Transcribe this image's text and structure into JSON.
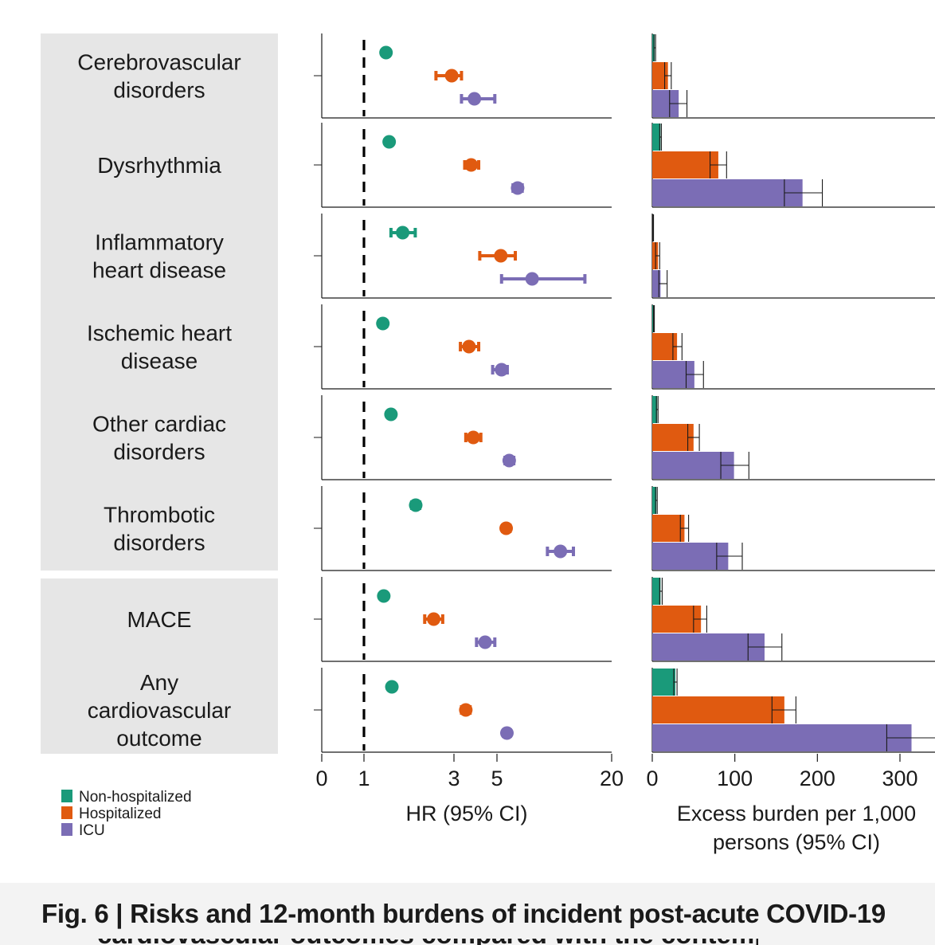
{
  "chart_data": [
    {
      "type": "forest",
      "xlabel": "HR (95% CI)",
      "xticks": [
        "0",
        "1",
        "3",
        "5",
        "20"
      ],
      "reference_line": 1,
      "categories": [
        "Cerebrovascular disorders",
        "Dysrhythmia",
        "Inflammatory heart disease",
        "Ischemic heart disease",
        "Other cardiac disorders",
        "Thrombotic disorders",
        "MACE",
        "Any cardiovascular outcome"
      ],
      "series": [
        {
          "name": "Non-hospitalized",
          "color": "#1a9a7a",
          "values": [
            1.49,
            1.56,
            1.86,
            1.42,
            1.6,
            2.15,
            1.44,
            1.62
          ],
          "ci_low": [
            1.43,
            1.51,
            1.6,
            1.34,
            1.55,
            2.06,
            1.39,
            1.58
          ],
          "ci_high": [
            1.56,
            1.62,
            2.14,
            1.5,
            1.66,
            2.24,
            1.5,
            1.67
          ]
        },
        {
          "name": "Hospitalized",
          "color": "#e05a10",
          "values": [
            2.95,
            3.8,
            5.5,
            3.7,
            3.9,
            6.2,
            2.55,
            3.55
          ],
          "ci_low": [
            2.6,
            3.5,
            4.2,
            3.3,
            3.55,
            5.75,
            2.35,
            3.35
          ],
          "ci_high": [
            3.35,
            4.15,
            7.4,
            4.15,
            4.25,
            6.7,
            2.75,
            3.75
          ]
        },
        {
          "name": "ICU",
          "color": "#7b6db5",
          "values": [
            3.95,
            7.7,
            9.6,
            5.6,
            6.6,
            13.3,
            4.45,
            6.3
          ],
          "ci_low": [
            3.35,
            7.1,
            5.6,
            4.8,
            6.05,
            11.6,
            4.05,
            5.85
          ],
          "ci_high": [
            4.9,
            8.3,
            16.5,
            6.35,
            7.2,
            15.0,
            4.9,
            6.75
          ]
        }
      ]
    },
    {
      "type": "bar",
      "orientation": "horizontal",
      "xlabel": "Excess burden per 1,000 persons (95% CI)",
      "xticks": [
        "0",
        "100",
        "200",
        "300"
      ],
      "xlim": [
        0,
        340
      ],
      "categories": [
        "Cerebrovascular disorders",
        "Dysrhythmia",
        "Inflammatory heart disease",
        "Ischemic heart disease",
        "Other cardiac disorders",
        "Thrombotic disorders",
        "MACE",
        "Any cardiovascular outcome"
      ],
      "series": [
        {
          "name": "Non-hospitalized",
          "color": "#1a9a7a",
          "values": [
            3,
            10,
            1,
            2,
            6,
            5,
            10,
            28
          ],
          "ci_low": [
            2,
            9,
            0.5,
            1.5,
            5,
            4,
            9,
            26
          ],
          "ci_high": [
            4,
            11,
            1.5,
            2.5,
            7,
            6,
            12,
            30
          ]
        },
        {
          "name": "Hospitalized",
          "color": "#e05a10",
          "values": [
            19,
            80,
            7,
            30,
            50,
            39,
            59,
            160
          ],
          "ci_low": [
            15,
            70,
            4,
            25,
            43,
            34,
            50,
            145
          ],
          "ci_high": [
            23,
            90,
            9,
            36,
            57,
            44,
            66,
            174
          ]
        },
        {
          "name": "ICU",
          "color": "#7b6db5",
          "values": [
            32,
            182,
            10,
            51,
            99,
            92,
            136,
            314
          ],
          "ci_low": [
            21,
            160,
            8,
            41,
            83,
            78,
            116,
            284
          ],
          "ci_high": [
            42,
            206,
            18,
            62,
            117,
            109,
            157,
            345
          ]
        }
      ]
    }
  ],
  "group_labels": [
    {
      "lines": [
        "Cerebrovascular",
        "disorders"
      ]
    },
    {
      "lines": [
        "Dysrhythmia"
      ]
    },
    {
      "lines": [
        "Inflammatory",
        "heart disease"
      ]
    },
    {
      "lines": [
        "Ischemic heart",
        "disease"
      ]
    },
    {
      "lines": [
        "Other cardiac",
        "disorders"
      ]
    },
    {
      "lines": [
        "Thrombotic",
        "disorders"
      ]
    },
    {
      "lines": [
        "MACE"
      ]
    },
    {
      "lines": [
        "Any",
        "cardiovascular",
        "outcome"
      ]
    }
  ],
  "legend": [
    {
      "label": "Non-hospitalized",
      "color": "#1a9a7a"
    },
    {
      "label": "Hospitalized",
      "color": "#e05a10"
    },
    {
      "label": "ICU",
      "color": "#7b6db5"
    }
  ],
  "burden_xlabel_lines": [
    "Excess burden per 1,000",
    "persons (95% CI)"
  ],
  "caption": {
    "prefix": "Fig. 6 |",
    "text": "Risks and 12-month burdens of incident post-acute COVID-19",
    "second_line_partial": "cardiovascular outcomes compared with the contemporary"
  }
}
